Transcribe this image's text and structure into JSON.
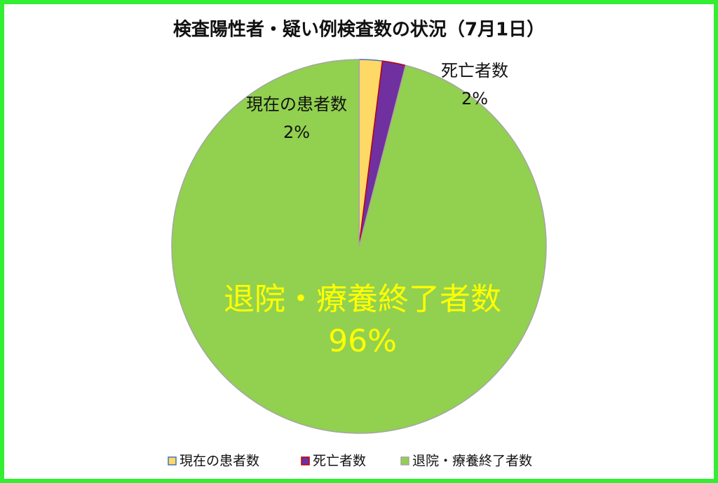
{
  "chart_data": {
    "type": "pie",
    "title": "検査陽性者・疑い例検査数の状況（7月1日）",
    "categories": [
      "現在の患者数",
      "死亡者数",
      "退院・療養終了者数"
    ],
    "values": [
      2,
      2,
      96
    ],
    "value_labels": [
      "2%",
      "2%",
      "96%"
    ],
    "colors": [
      "#ffd966",
      "#7030a0",
      "#92d050"
    ],
    "legend": "bottom"
  }
}
